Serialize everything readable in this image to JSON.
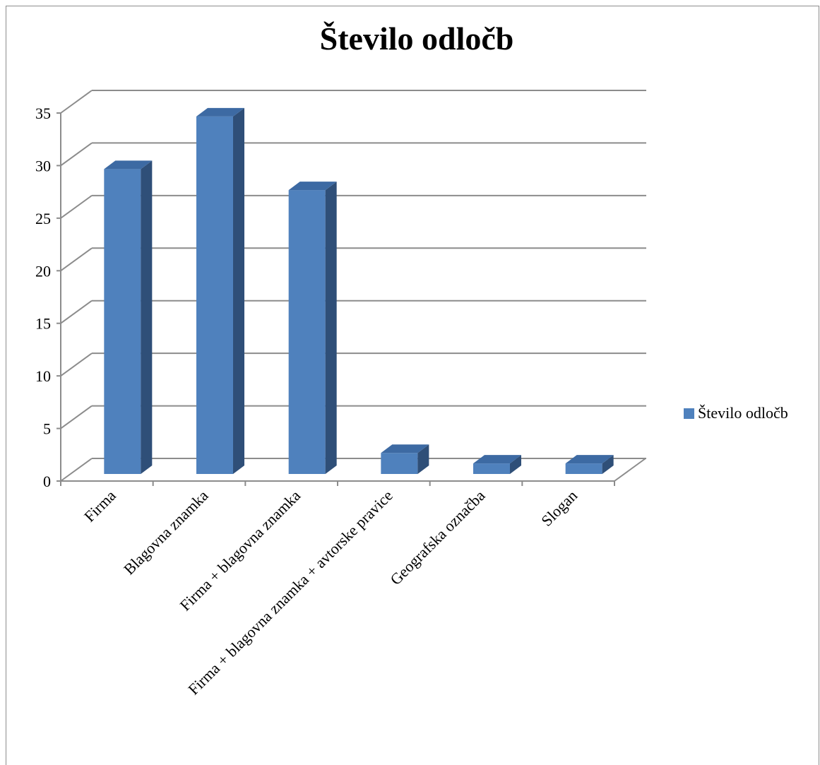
{
  "chart_data": {
    "type": "bar",
    "title": "Število odločb",
    "categories": [
      "Firma",
      "Blagovna znamka",
      "Firma + blagovna znamka",
      "Firma + blagovna znamka + avtorske pravice",
      "Geografska označba",
      "Slogan"
    ],
    "series": [
      {
        "name": "Število odločb",
        "values": [
          29,
          34,
          27,
          2,
          1,
          1
        ]
      }
    ],
    "ylim": [
      0,
      35
    ],
    "yticks": [
      0,
      5,
      10,
      15,
      20,
      25,
      30,
      35
    ],
    "grid": true,
    "legend_position": "right",
    "colors": {
      "bar_front": "#4f81bd",
      "bar_side": "#2f4f78",
      "bar_top": "#3d6aa3",
      "grid": "#8c8c8c"
    }
  }
}
